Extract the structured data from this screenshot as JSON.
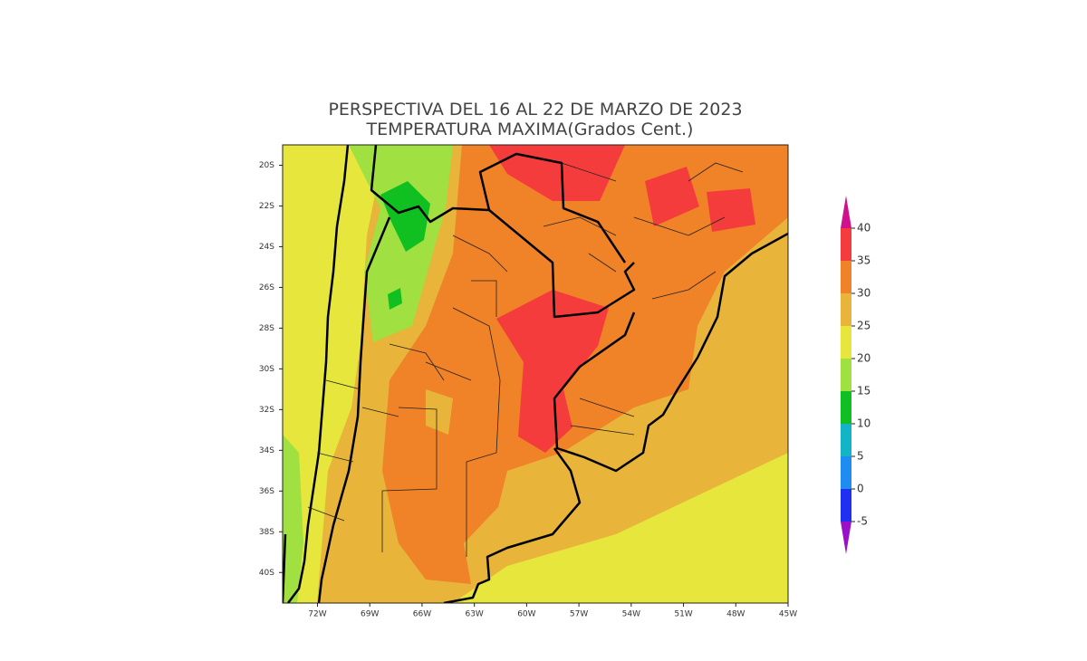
{
  "title": [
    "PERSPECTIVA DEL 16 AL 22  DE MARZO DE 2023",
    "TEMPERATURA MAXIMA(Grados Cent.)"
  ],
  "map": {
    "xlim": [
      -74,
      -45
    ],
    "ylim": [
      -41.5,
      -19
    ],
    "xticks": [
      {
        "value": -72,
        "label": "72W"
      },
      {
        "value": -69,
        "label": "69W"
      },
      {
        "value": -66,
        "label": "66W"
      },
      {
        "value": -63,
        "label": "63W"
      },
      {
        "value": -60,
        "label": "60W"
      },
      {
        "value": -57,
        "label": "57W"
      },
      {
        "value": -54,
        "label": "54W"
      },
      {
        "value": -51,
        "label": "51W"
      },
      {
        "value": -48,
        "label": "48W"
      },
      {
        "value": -45,
        "label": "45W"
      }
    ],
    "yticks": [
      {
        "value": -20,
        "label": "20S"
      },
      {
        "value": -22,
        "label": "22S"
      },
      {
        "value": -24,
        "label": "24S"
      },
      {
        "value": -26,
        "label": "26S"
      },
      {
        "value": -28,
        "label": "28S"
      },
      {
        "value": -30,
        "label": "30S"
      },
      {
        "value": -32,
        "label": "32S"
      },
      {
        "value": -34,
        "label": "34S"
      },
      {
        "value": -36,
        "label": "36S"
      },
      {
        "value": -38,
        "label": "38S"
      },
      {
        "value": -40,
        "label": "40S"
      }
    ]
  },
  "colorbar": {
    "levels": [
      -5,
      0,
      5,
      10,
      15,
      20,
      25,
      30,
      35,
      40
    ],
    "colors": [
      "#9a10c8",
      "#2030f0",
      "#1e8cf0",
      "#14b4c8",
      "#10c020",
      "#a0e040",
      "#e6e63c",
      "#e8b43a",
      "#f08228",
      "#f53c3c",
      "#d0108c"
    ]
  }
}
